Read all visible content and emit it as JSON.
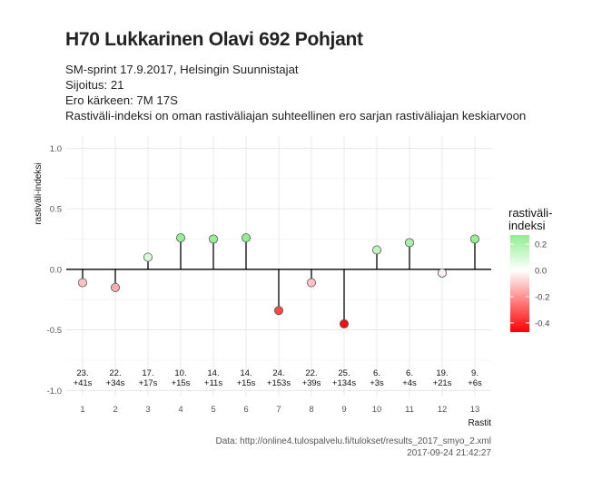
{
  "title": "H70 Lukkarinen Olavi 692 Pohjant",
  "subtitle": [
    "SM-sprint 17.9.2017, Helsingin Suunnistajat",
    "Sijoitus: 21",
    "Ero kärkeen: 7M 17S",
    "Rastiväli-indeksi on oman rastiväliajan suhteellinen ero sarjan rastiväliajan keskiarvoon"
  ],
  "caption": {
    "source": "Data: http://online4.tulospalvelu.fi/tulokset/results_2017_smyo_2.xml",
    "timestamp": "2017-09-24 21:42:27"
  },
  "chart_data": {
    "type": "scatter",
    "xlabel": "Rastit",
    "ylabel": "rastiväli-indeksi",
    "x": [
      1,
      2,
      3,
      4,
      5,
      6,
      7,
      8,
      9,
      10,
      11,
      12,
      13
    ],
    "values": [
      -0.11,
      -0.15,
      0.1,
      0.26,
      0.25,
      0.26,
      -0.34,
      -0.11,
      -0.45,
      0.16,
      0.22,
      -0.03,
      0.25
    ],
    "point_labels": [
      [
        "23.",
        "+41s"
      ],
      [
        "22.",
        "+34s"
      ],
      [
        "17.",
        "+17s"
      ],
      [
        "10.",
        "+15s"
      ],
      [
        "14.",
        "+11s"
      ],
      [
        "14.",
        "+15s"
      ],
      [
        "24.",
        "+153s"
      ],
      [
        "22.",
        "+39s"
      ],
      [
        "25.",
        "+134s"
      ],
      [
        "6.",
        "+3s"
      ],
      [
        "6.",
        "+4s"
      ],
      [
        "19.",
        "+21s"
      ],
      [
        "9.",
        "+6s"
      ]
    ],
    "xlim": [
      0.5,
      13.5
    ],
    "ylim": [
      -1.05,
      1.1
    ],
    "yticks": [
      -1.0,
      -0.5,
      0.0,
      0.5,
      1.0
    ],
    "ytick_labels": [
      "-1.0",
      "-0.5",
      "0.0",
      "0.5",
      "1.0"
    ],
    "xtick_labels": [
      "1",
      "2",
      "3",
      "4",
      "5",
      "6",
      "7",
      "8",
      "9",
      "10",
      "11",
      "12",
      "13"
    ],
    "grid": true,
    "legend": {
      "title": "rastiväli-\nindeksi",
      "placement": "right",
      "ticks": [
        0.2,
        0.0,
        -0.2,
        -0.4
      ],
      "tick_labels": [
        "0.2",
        "0.0",
        "-0.2",
        "-0.4"
      ],
      "range": [
        -0.47,
        0.27
      ]
    },
    "colors": {
      "low": "#ff0000",
      "mid": "#ffffff",
      "high": "#90ee90"
    }
  }
}
